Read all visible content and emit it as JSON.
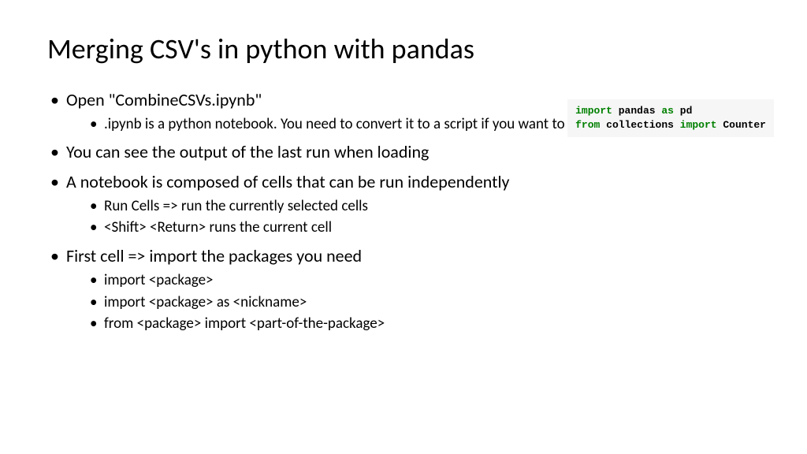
{
  "title": "Merging CSV's in python with pandas",
  "bullets": {
    "b1": "Open \"CombineCSVs.ipynb\"",
    "b1_1": ".ipynb is a python notebook. You need to convert it to a script if you want to run it outside jupyter",
    "b2": " You can see the output of the last run when loading",
    "b3": "A notebook is composed of cells that can be run independently",
    "b3_1": "Run Cells => run the currently selected cells",
    "b3_2": "<Shift> <Return> runs the current cell",
    "b4": "First cell => import the packages you need",
    "b4_1": "import <package>",
    "b4_2": "import <package> as <nickname>",
    "b4_3": "from <package> import <part-of-the-package>"
  },
  "code": {
    "kw_import1": "import",
    "pandas": " pandas ",
    "kw_as": "as",
    "pd": " pd",
    "kw_from": "from",
    "collections": " collections ",
    "kw_import2": "import",
    "counter": " Counter"
  },
  "styling": {
    "background_color": "#ffffff",
    "text_color": "#000000",
    "title_fontsize": 36,
    "body_fontsize": 22,
    "sub_fontsize": 19,
    "code_bg": "#f6f6f6",
    "keyword_color": "#008000",
    "code_fontsize": 13,
    "font_family": "Calibri",
    "code_font_family": "Courier New"
  }
}
